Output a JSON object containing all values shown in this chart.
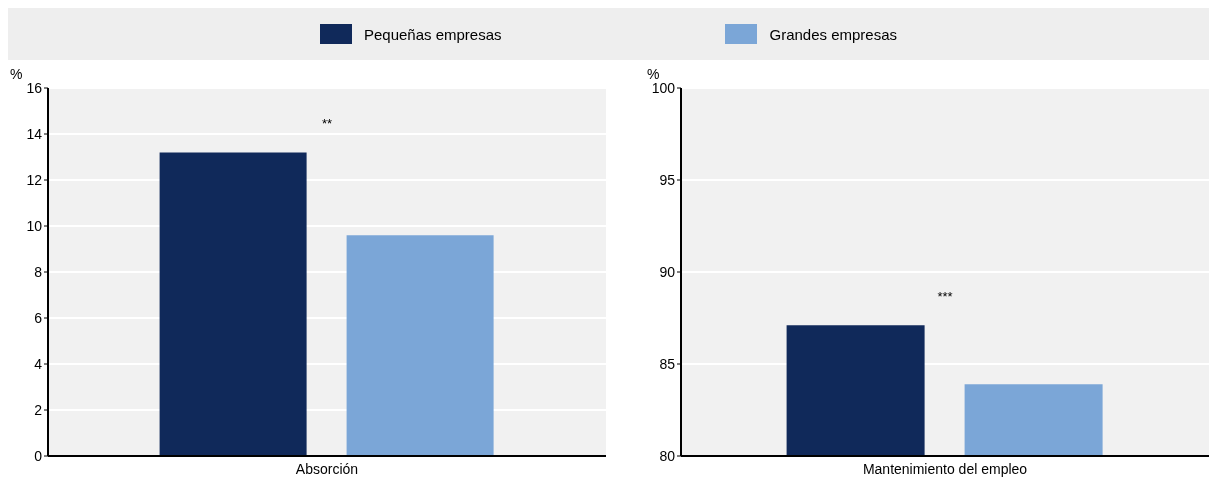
{
  "chart_data": [
    {
      "type": "bar",
      "categories": [
        "Absorción"
      ],
      "ylabel": "%",
      "ylim": [
        0,
        16
      ],
      "yticks": [
        0,
        2,
        4,
        6,
        8,
        10,
        12,
        14,
        16
      ],
      "grid": "y",
      "legend": "top",
      "series": [
        {
          "name": "Pequeñas empresas",
          "color": "#10295a",
          "values": [
            13.2
          ]
        },
        {
          "name": "Grandes empresas",
          "color": "#7ba6d7",
          "values": [
            9.6
          ]
        }
      ],
      "annotations": [
        "**"
      ]
    },
    {
      "type": "bar",
      "categories": [
        "Mantenimiento del empleo"
      ],
      "ylabel": "%",
      "ylim": [
        80,
        100
      ],
      "yticks": [
        80,
        85,
        90,
        95,
        100
      ],
      "grid": "y",
      "series": [
        {
          "color": "#10295a",
          "values": [
            87.1
          ]
        },
        {
          "color": "#7ba6d7",
          "values": [
            83.9
          ]
        }
      ],
      "annotations": [
        "***"
      ]
    }
  ]
}
